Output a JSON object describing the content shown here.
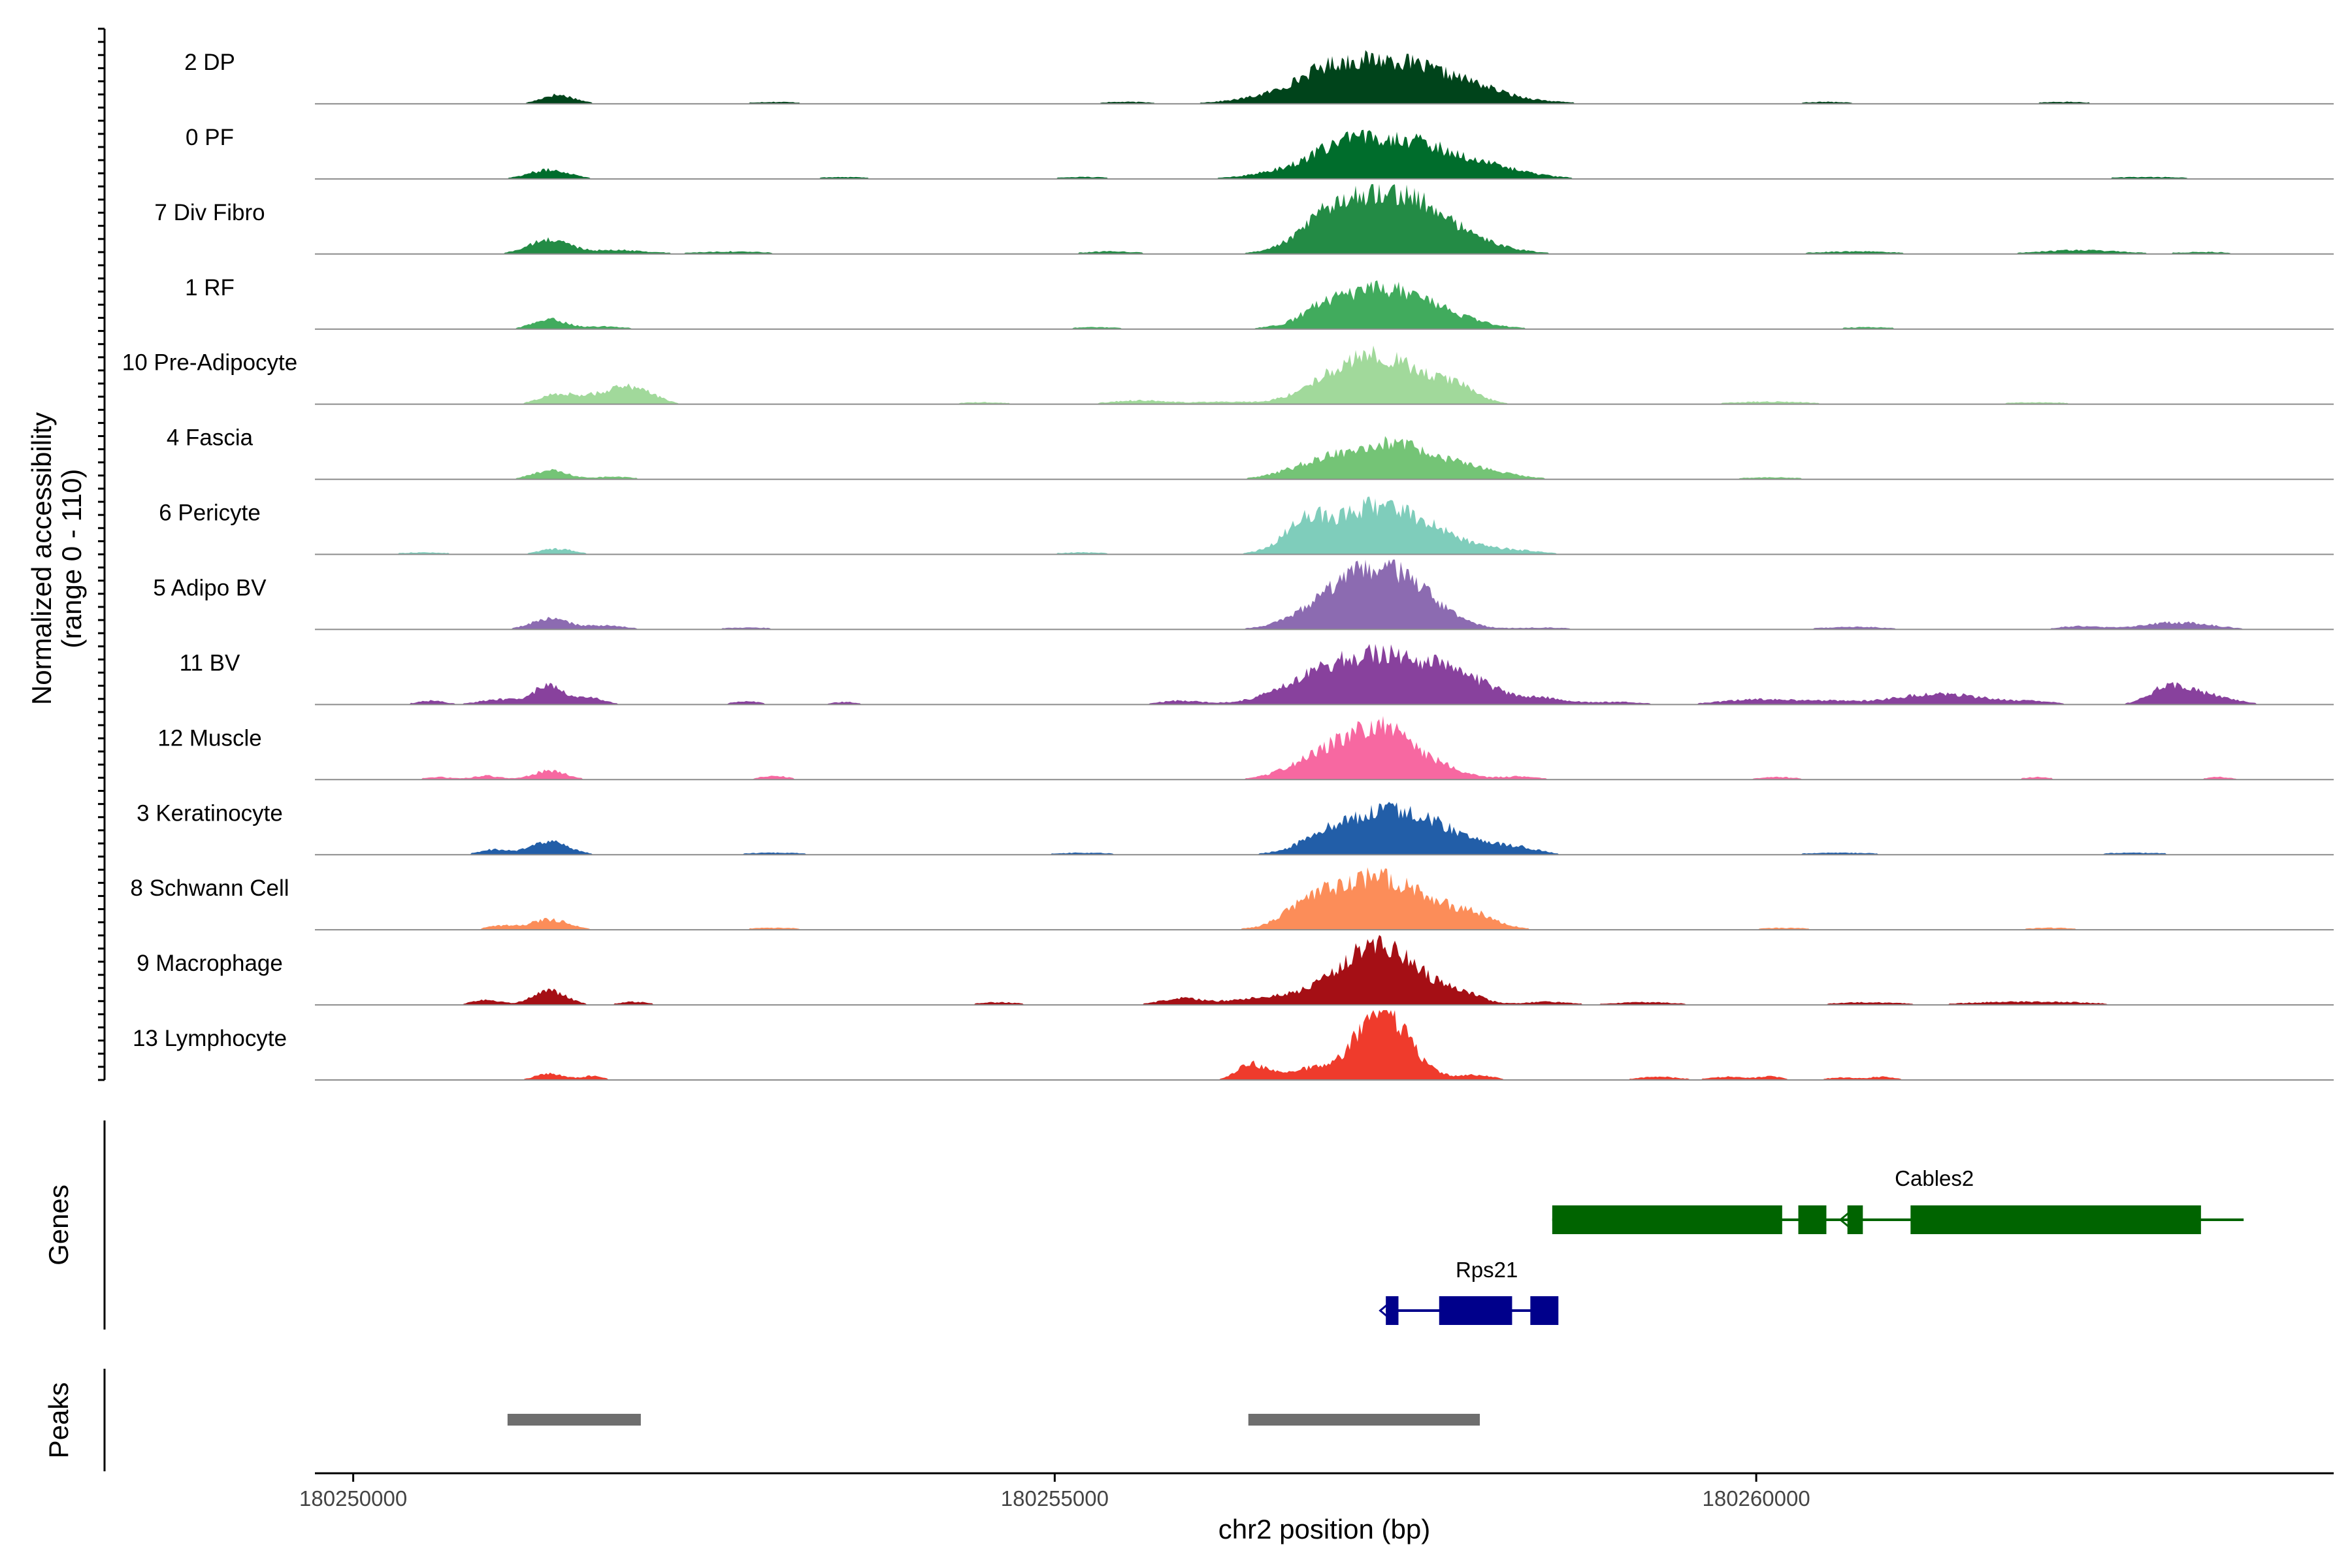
{
  "chart_data": {
    "type": "area",
    "title": "",
    "xlabel": "chr2 position (bp)",
    "ylabel": [
      "Normalized accessibility",
      "(range 0 - 110)"
    ],
    "xlim": [
      180249727,
      180264116
    ],
    "ylim": [
      0,
      110
    ],
    "x_ticks": [
      180250000,
      180255000,
      180260000
    ],
    "x_tick_labels": [
      "180250000",
      "180255000",
      "180260000"
    ],
    "tracks_label": "Normalized accessibility",
    "genes_label": "Genes",
    "peaks_label": "Peaks",
    "tracks": [
      {
        "name": "2 DP",
        "color": "#00441b",
        "peaks": [
          [
            180251450,
            110,
            130,
            14
          ],
          [
            180257320,
            480,
            520,
            70
          ],
          [
            180256900,
            150,
            150,
            10
          ],
          [
            180255500,
            200,
            200,
            3
          ],
          [
            180253000,
            200,
            200,
            3
          ],
          [
            180258000,
            150,
            150,
            4
          ],
          [
            180260500,
            200,
            200,
            3
          ],
          [
            180262200,
            200,
            200,
            3
          ]
        ]
      },
      {
        "name": "0 PF",
        "color": "#006d2c",
        "peaks": [
          [
            180251400,
            150,
            150,
            14
          ],
          [
            180257350,
            450,
            500,
            66
          ],
          [
            180257000,
            120,
            120,
            8
          ],
          [
            180258200,
            200,
            200,
            4
          ],
          [
            180255200,
            200,
            200,
            3
          ],
          [
            180253500,
            200,
            200,
            3
          ],
          [
            180262800,
            300,
            300,
            3
          ]
        ]
      },
      {
        "name": "7 Div Fibro",
        "color": "#238b45",
        "peaks": [
          [
            180251400,
            150,
            150,
            22
          ],
          [
            180257350,
            350,
            420,
            100
          ],
          [
            180256950,
            200,
            150,
            22
          ],
          [
            180251900,
            200,
            200,
            6
          ],
          [
            180252700,
            250,
            250,
            4
          ],
          [
            180255400,
            200,
            200,
            4
          ],
          [
            180260700,
            300,
            300,
            4
          ],
          [
            180262300,
            300,
            300,
            6
          ],
          [
            180263200,
            200,
            200,
            3
          ]
        ]
      },
      {
        "name": "1 RF",
        "color": "#41ab5d",
        "peaks": [
          [
            180251400,
            120,
            120,
            15
          ],
          [
            180257350,
            350,
            380,
            64
          ],
          [
            180256900,
            120,
            120,
            15
          ],
          [
            180251800,
            150,
            150,
            4
          ],
          [
            180255300,
            200,
            200,
            3
          ],
          [
            180260800,
            200,
            200,
            3
          ]
        ]
      },
      {
        "name": "10 Pre-Adipocyte",
        "color": "#a1d99b",
        "peaks": [
          [
            180251450,
            120,
            120,
            15
          ],
          [
            180251850,
            180,
            180,
            20
          ],
          [
            180252050,
            120,
            120,
            15
          ],
          [
            180257300,
            300,
            320,
            74
          ],
          [
            180256900,
            200,
            200,
            13
          ],
          [
            180257850,
            150,
            150,
            20
          ],
          [
            180255600,
            200,
            200,
            6
          ],
          [
            180256200,
            200,
            200,
            4
          ],
          [
            180260100,
            300,
            300,
            4
          ],
          [
            180262000,
            250,
            250,
            3
          ],
          [
            180254500,
            200,
            200,
            3
          ]
        ]
      },
      {
        "name": "4 Fascia",
        "color": "#74c476",
        "peaks": [
          [
            180251400,
            120,
            120,
            14
          ],
          [
            180257350,
            350,
            420,
            56
          ],
          [
            180256800,
            200,
            200,
            10
          ],
          [
            180251850,
            150,
            150,
            4
          ],
          [
            180258100,
            200,
            200,
            4
          ],
          [
            180260100,
            250,
            250,
            3
          ]
        ]
      },
      {
        "name": "6 Pericyte",
        "color": "#7fcdbb",
        "peaks": [
          [
            180251450,
            120,
            120,
            9
          ],
          [
            180257300,
            350,
            400,
            76
          ],
          [
            180256800,
            150,
            100,
            36
          ],
          [
            180258300,
            200,
            200,
            4
          ],
          [
            180255200,
            200,
            200,
            3
          ],
          [
            180250500,
            200,
            200,
            3
          ]
        ]
      },
      {
        "name": "5 Adipo BV",
        "color": "#8c6bb1",
        "peaks": [
          [
            180251400,
            130,
            130,
            17
          ],
          [
            180251800,
            150,
            150,
            6
          ],
          [
            180257400,
            350,
            280,
            88
          ],
          [
            180257000,
            250,
            250,
            24
          ],
          [
            180263000,
            250,
            250,
            11
          ],
          [
            180260700,
            250,
            250,
            4
          ],
          [
            180262300,
            150,
            150,
            5
          ],
          [
            180252800,
            200,
            200,
            3
          ],
          [
            180258500,
            200,
            200,
            3
          ]
        ]
      },
      {
        "name": "11 BV",
        "color": "#88419d",
        "peaks": [
          [
            180251400,
            110,
            110,
            30
          ],
          [
            180251050,
            150,
            150,
            8
          ],
          [
            180251700,
            100,
            100,
            10
          ],
          [
            180250550,
            100,
            100,
            6
          ],
          [
            180257300,
            400,
            450,
            76
          ],
          [
            180256800,
            250,
            250,
            14
          ],
          [
            180257900,
            250,
            250,
            20
          ],
          [
            180258500,
            150,
            150,
            8
          ],
          [
            180255900,
            150,
            150,
            6
          ],
          [
            180260000,
            250,
            250,
            8
          ],
          [
            180261200,
            300,
            300,
            8
          ],
          [
            180261400,
            300,
            300,
            10
          ],
          [
            180263000,
            150,
            150,
            26
          ],
          [
            180262850,
            100,
            100,
            7
          ],
          [
            180263300,
            150,
            150,
            10
          ],
          [
            180260500,
            200,
            200,
            5
          ],
          [
            180252800,
            100,
            100,
            5
          ],
          [
            180253500,
            100,
            100,
            4
          ],
          [
            180259000,
            200,
            200,
            4
          ],
          [
            180262000,
            150,
            150,
            4
          ]
        ]
      },
      {
        "name": "12 Muscle",
        "color": "#f768a1",
        "peaks": [
          [
            180251400,
            120,
            120,
            14
          ],
          [
            180250950,
            100,
            100,
            6
          ],
          [
            180253000,
            100,
            100,
            6
          ],
          [
            180257300,
            300,
            260,
            84
          ],
          [
            180256800,
            200,
            200,
            15
          ],
          [
            180257800,
            150,
            150,
            10
          ],
          [
            180258300,
            150,
            150,
            5
          ],
          [
            180250600,
            100,
            100,
            4
          ],
          [
            180260150,
            150,
            150,
            4
          ],
          [
            180262000,
            100,
            100,
            4
          ],
          [
            180263300,
            100,
            100,
            4
          ]
        ]
      },
      {
        "name": "3 Keratinocyte",
        "color": "#225ea8",
        "peaks": [
          [
            180251400,
            140,
            140,
            20
          ],
          [
            180251000,
            100,
            100,
            8
          ],
          [
            180257400,
            350,
            400,
            72
          ],
          [
            180256900,
            150,
            150,
            12
          ],
          [
            180258300,
            150,
            150,
            8
          ],
          [
            180253000,
            250,
            250,
            3
          ],
          [
            180255200,
            250,
            250,
            3
          ],
          [
            180260600,
            300,
            300,
            3
          ],
          [
            180262700,
            250,
            250,
            3
          ]
        ]
      },
      {
        "name": "8 Schwann Cell",
        "color": "#fc8d59",
        "peaks": [
          [
            180251400,
            140,
            140,
            16
          ],
          [
            180251050,
            100,
            100,
            6
          ],
          [
            180257300,
            350,
            380,
            82
          ],
          [
            180256800,
            150,
            150,
            24
          ],
          [
            180258000,
            150,
            150,
            14
          ],
          [
            180253000,
            200,
            200,
            3
          ],
          [
            180260200,
            200,
            200,
            3
          ],
          [
            180262100,
            200,
            200,
            3
          ]
        ]
      },
      {
        "name": "9 Macrophage",
        "color": "#a50f15",
        "peaks": [
          [
            180251400,
            120,
            120,
            22
          ],
          [
            180250950,
            100,
            100,
            8
          ],
          [
            180252000,
            100,
            100,
            5
          ],
          [
            180257300,
            230,
            300,
            90
          ],
          [
            180256900,
            250,
            250,
            20
          ],
          [
            180256400,
            200,
            200,
            8
          ],
          [
            180255900,
            150,
            150,
            10
          ],
          [
            180257900,
            150,
            150,
            12
          ],
          [
            180258500,
            150,
            150,
            5
          ],
          [
            180254600,
            150,
            150,
            4
          ],
          [
            180260800,
            250,
            250,
            4
          ],
          [
            180261700,
            250,
            250,
            4
          ],
          [
            180262200,
            250,
            250,
            4
          ],
          [
            180259200,
            250,
            250,
            4
          ]
        ]
      },
      {
        "name": "13 Lymphocyte",
        "color": "#ef3b2c",
        "peaks": [
          [
            180251400,
            100,
            100,
            10
          ],
          [
            180251700,
            80,
            80,
            6
          ],
          [
            180257320,
            150,
            200,
            110
          ],
          [
            180257000,
            200,
            200,
            20
          ],
          [
            180256400,
            100,
            100,
            24
          ],
          [
            180256700,
            150,
            150,
            8
          ],
          [
            180258000,
            120,
            120,
            8
          ],
          [
            180259300,
            150,
            150,
            5
          ],
          [
            180259800,
            120,
            120,
            5
          ],
          [
            180260100,
            80,
            80,
            6
          ],
          [
            180260600,
            100,
            100,
            4
          ],
          [
            180260900,
            100,
            100,
            5
          ]
        ]
      }
    ],
    "genes": [
      {
        "name": "Cables2",
        "strand": "-",
        "start": 180258546,
        "end": 180263474,
        "color": "#006400",
        "exons": [
          [
            180258546,
            180260185
          ],
          [
            180260300,
            180260500
          ],
          [
            180260650,
            180260760
          ],
          [
            180261100,
            180263170
          ]
        ]
      },
      {
        "name": "Rps21",
        "strand": "-",
        "start": 180257360,
        "end": 180258546,
        "color": "#00008b",
        "exons": [
          [
            180257360,
            180257450
          ],
          [
            180257740,
            180258260
          ],
          [
            180258390,
            180258590
          ]
        ]
      }
    ],
    "peaks": [
      {
        "start": 180251100,
        "end": 180252050
      },
      {
        "start": 180256380,
        "end": 180258030
      }
    ]
  }
}
